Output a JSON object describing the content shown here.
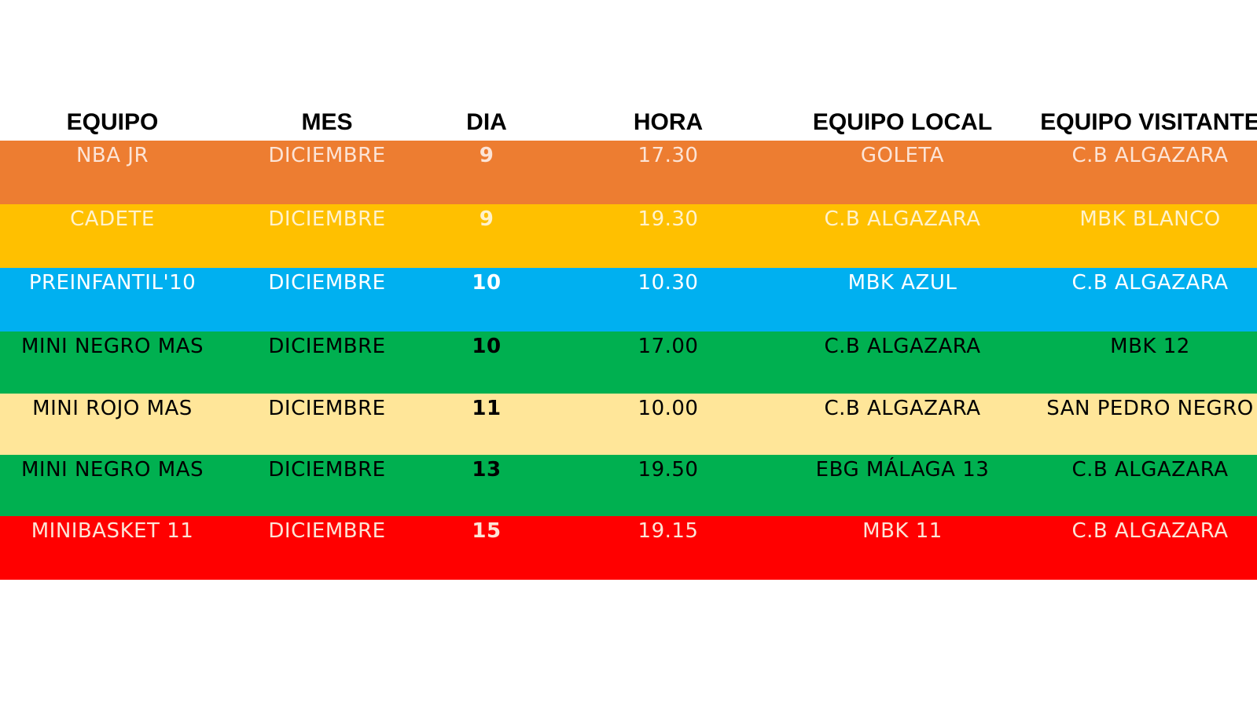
{
  "headers": {
    "equipo": "EQUIPO",
    "mes": "MES",
    "dia": "DIA",
    "hora": "HORA",
    "equipo_local": "EQUIPO LOCAL",
    "equipo_visitante": "EQUIPO VISITANTE"
  },
  "rows": [
    {
      "equipo": "NBA JR",
      "mes": "DICIEMBRE",
      "dia": "9",
      "hora": "17.30",
      "local": "GOLETA",
      "visitante": "C.B ALGAZARA",
      "bg": "#ED7D31",
      "fg": "#FCE4D6"
    },
    {
      "equipo": "CADETE",
      "mes": "DICIEMBRE",
      "dia": "9",
      "hora": "19.30",
      "local": "C.B ALGAZARA",
      "visitante": "MBK BLANCO",
      "bg": "#FFC000",
      "fg": "#FFF2CC"
    },
    {
      "equipo": "PREINFANTIL'10",
      "mes": "DICIEMBRE",
      "dia": "10",
      "hora": "10.30",
      "local": "MBK AZUL",
      "visitante": "C.B ALGAZARA",
      "bg": "#00B0F0",
      "fg": "#FFFFFF"
    },
    {
      "equipo": "MINI NEGRO MAS",
      "mes": "DICIEMBRE",
      "dia": "10",
      "hora": "17.00",
      "local": "C.B ALGAZARA",
      "visitante": "MBK 12",
      "bg": "#00B050",
      "fg": "#000000"
    },
    {
      "equipo": "MINI ROJO MAS",
      "mes": "DICIEMBRE",
      "dia": "11",
      "hora": "10.00",
      "local": "C.B ALGAZARA",
      "visitante": "SAN PEDRO NEGRO",
      "bg": "#FFE699",
      "fg": "#000000"
    },
    {
      "equipo": "MINI NEGRO MAS",
      "mes": "DICIEMBRE",
      "dia": "13",
      "hora": "19.50",
      "local": "EBG MÁLAGA 13",
      "visitante": "C.B ALGAZARA",
      "bg": "#00B050",
      "fg": "#000000"
    },
    {
      "equipo": "MINIBASKET 11",
      "mes": "DICIEMBRE",
      "dia": "15",
      "hora": "19.15",
      "local": "MBK 11",
      "visitante": "C.B ALGAZARA",
      "bg": "#FF0000",
      "fg": "#FCE4D6"
    }
  ]
}
